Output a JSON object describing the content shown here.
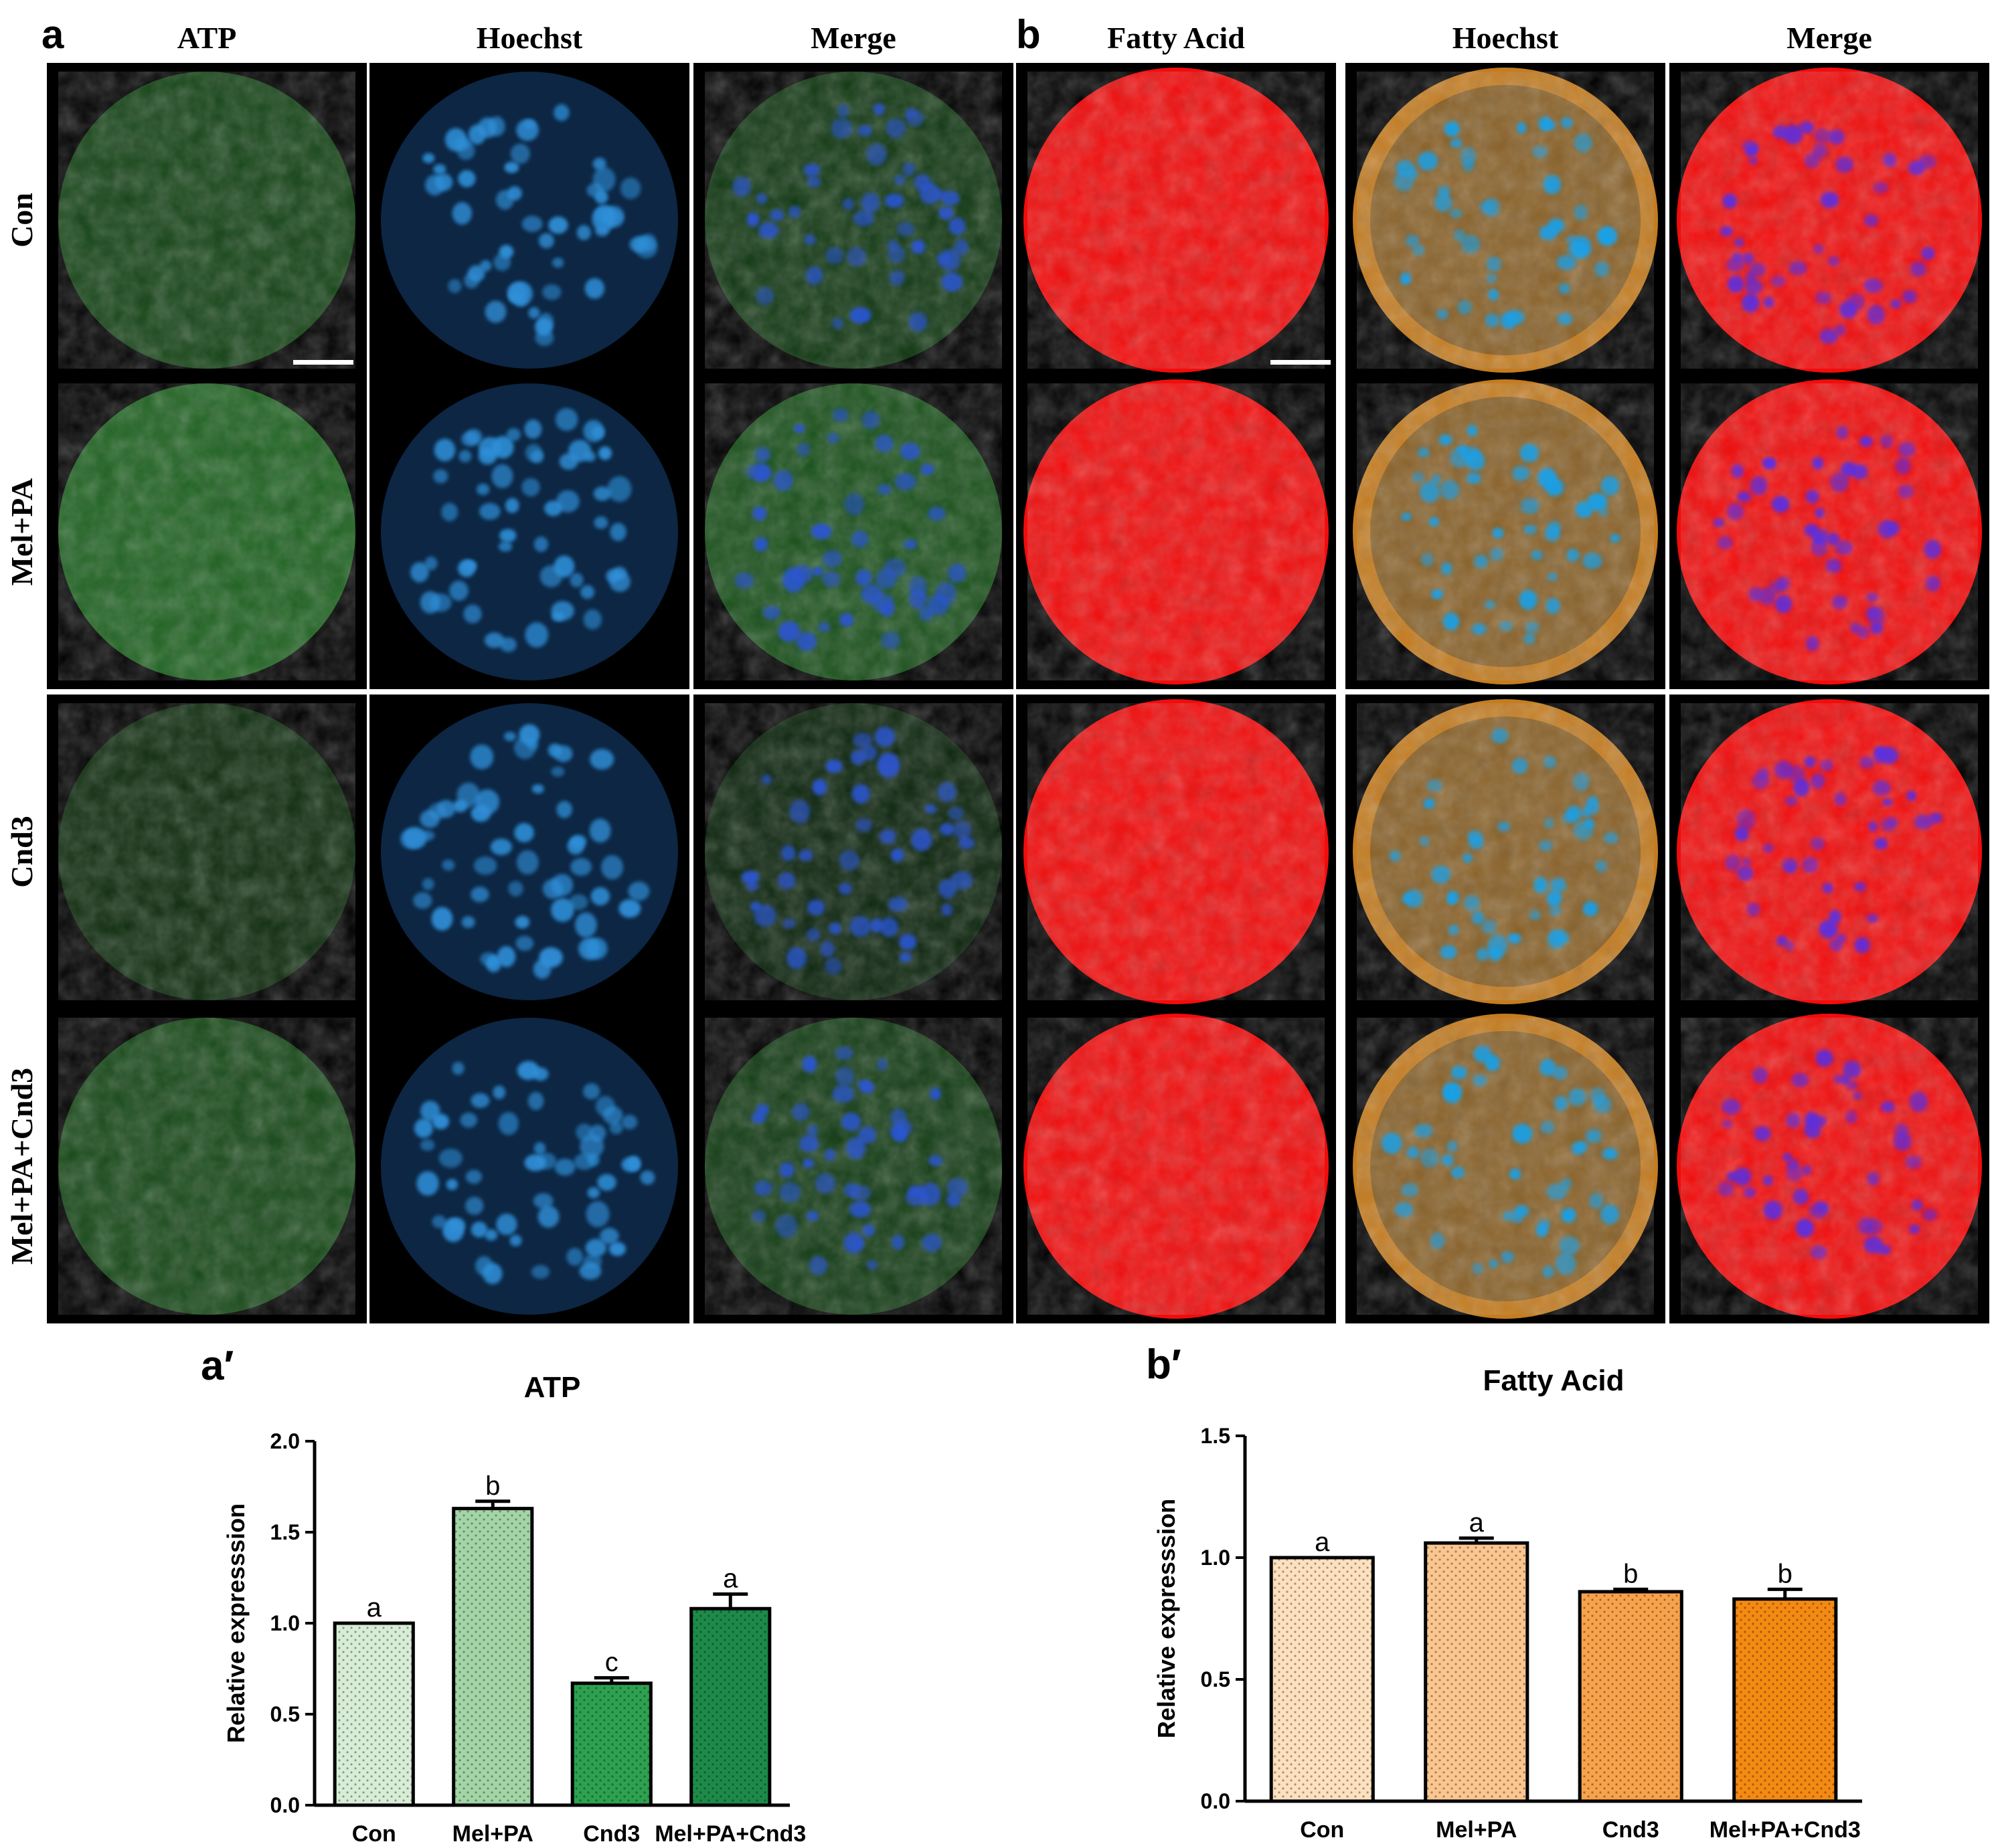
{
  "panel_a": {
    "letter": "a",
    "columns": [
      "ATP",
      "Hoechst",
      "Merge"
    ],
    "rows": [
      "Con",
      "Mel+PA",
      "Cnd3",
      "Mel+PA+Cnd3"
    ]
  },
  "panel_b": {
    "letter": "b",
    "columns": [
      "Fatty Acid",
      "Hoechst",
      "Merge"
    ]
  },
  "colors": {
    "atp_green": "#37b23a",
    "hoechst_blue": "#2f8fd8",
    "fatty_red": "#f20c0c",
    "fatty_hoechst_orange": "#d98a24",
    "nuclei_merge_blue": "#5a2fe0"
  },
  "chart_data": [
    {
      "panel_letter": "a′",
      "type": "bar",
      "title": "ATP",
      "ylabel": "Relative expresssion",
      "xlabel": "",
      "categories": [
        "Con",
        "Mel+PA",
        "Cnd3",
        "Mel+PA+Cnd3"
      ],
      "values": [
        1.0,
        1.63,
        0.67,
        1.08
      ],
      "errors": [
        0.0,
        0.04,
        0.03,
        0.08
      ],
      "sig_letters": [
        "a",
        "b",
        "c",
        "a"
      ],
      "ylim": [
        0,
        2.0
      ],
      "ytick_values": [
        0,
        0.5,
        1.0,
        1.5,
        2.0
      ],
      "yticks": [
        "0.0",
        "0.5",
        "1.0",
        "1.5",
        "2.0"
      ],
      "bar_colors": [
        "#d8edd6",
        "#a3d5a6",
        "#2da14f",
        "#1d8a4a"
      ],
      "grid": false
    },
    {
      "panel_letter": "b′",
      "type": "bar",
      "title": "Fatty Acid",
      "ylabel": "Relative expresssion",
      "xlabel": "",
      "categories": [
        "Con",
        "Mel+PA",
        "Cnd3",
        "Mel+PA+Cnd3"
      ],
      "values": [
        1.0,
        1.06,
        0.86,
        0.83
      ],
      "errors": [
        0.0,
        0.02,
        0.01,
        0.04
      ],
      "sig_letters": [
        "a",
        "a",
        "b",
        "b"
      ],
      "ylim": [
        0,
        1.5
      ],
      "ytick_values": [
        0,
        0.5,
        1.0,
        1.5
      ],
      "yticks": [
        "0.0",
        "0.5",
        "1.0",
        "1.5"
      ],
      "bar_colors": [
        "#fde0bd",
        "#fbc68f",
        "#f8a24b",
        "#f58a12"
      ],
      "grid": false
    }
  ]
}
